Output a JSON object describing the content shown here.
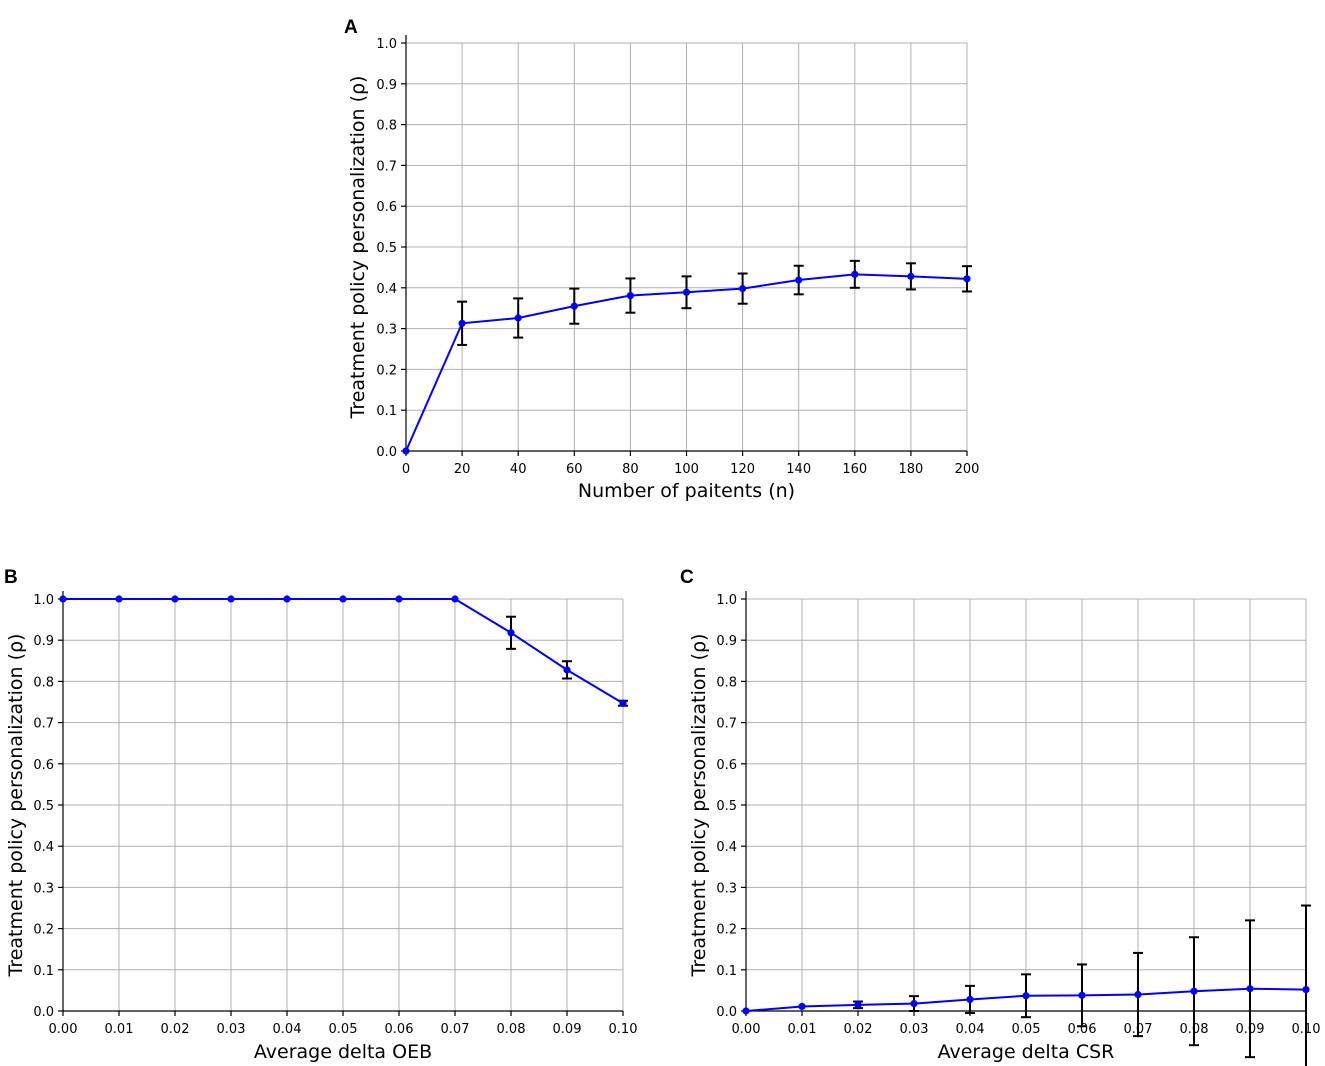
{
  "panels": [
    {
      "letter": "A",
      "xlabel": "Number of paitents (n)",
      "ylabel": "Treatment policy personalization (ρ)",
      "xticks": [
        "0",
        "20",
        "40",
        "60",
        "80",
        "100",
        "120",
        "140",
        "160",
        "180",
        "200"
      ],
      "yticks": [
        "0.0",
        "0.1",
        "0.2",
        "0.3",
        "0.4",
        "0.5",
        "0.6",
        "0.7",
        "0.8",
        "0.9",
        "1.0"
      ]
    },
    {
      "letter": "B",
      "xlabel": "Average delta OEB",
      "ylabel": "Treatment policy personalization (ρ)",
      "xticks": [
        "0.00",
        "0.01",
        "0.02",
        "0.03",
        "0.04",
        "0.05",
        "0.06",
        "0.07",
        "0.08",
        "0.09",
        "0.10"
      ],
      "yticks": [
        "0.0",
        "0.1",
        "0.2",
        "0.3",
        "0.4",
        "0.5",
        "0.6",
        "0.7",
        "0.8",
        "0.9",
        "1.0"
      ]
    },
    {
      "letter": "C",
      "xlabel": "Average delta CSR",
      "ylabel": "Treatment policy personalization (ρ)",
      "xticks": [
        "0.00",
        "0.01",
        "0.02",
        "0.03",
        "0.04",
        "0.05",
        "0.06",
        "0.07",
        "0.08",
        "0.09",
        "0.10"
      ],
      "yticks": [
        "0.0",
        "0.1",
        "0.2",
        "0.3",
        "0.4",
        "0.5",
        "0.6",
        "0.7",
        "0.8",
        "0.9",
        "1.0"
      ]
    }
  ],
  "chart_data": [
    {
      "type": "line",
      "panel": "A",
      "xlabel": "Number of paitents (n)",
      "ylabel": "Treatment policy personalization (ρ)",
      "xlim": [
        0,
        200
      ],
      "ylim": [
        0,
        1.0
      ],
      "grid": true,
      "line_color": "#0000ff",
      "x": [
        0,
        20,
        40,
        60,
        80,
        100,
        120,
        140,
        160,
        180,
        200
      ],
      "y": [
        0.0,
        0.313,
        0.326,
        0.355,
        0.381,
        0.389,
        0.398,
        0.419,
        0.433,
        0.428,
        0.422
      ],
      "yerr": [
        0.0,
        0.053,
        0.048,
        0.043,
        0.042,
        0.039,
        0.037,
        0.035,
        0.033,
        0.032,
        0.031
      ]
    },
    {
      "type": "line",
      "panel": "B",
      "xlabel": "Average delta OEB",
      "ylabel": "Treatment policy personalization (ρ)",
      "xlim": [
        0,
        0.1
      ],
      "ylim": [
        0,
        1.0
      ],
      "grid": true,
      "line_color": "#0000ff",
      "x": [
        0.0,
        0.01,
        0.02,
        0.03,
        0.04,
        0.05,
        0.06,
        0.07,
        0.08,
        0.09,
        0.1
      ],
      "y": [
        1.0,
        1.0,
        1.0,
        1.0,
        1.0,
        1.0,
        1.0,
        1.0,
        0.918,
        0.828,
        0.747
      ],
      "yerr": [
        0.0,
        0.0,
        0.0,
        0.0,
        0.0,
        0.0,
        0.0,
        0.0,
        0.039,
        0.021,
        0.006
      ]
    },
    {
      "type": "line",
      "panel": "C",
      "xlabel": "Average delta CSR",
      "ylabel": "Treatment policy personalization (ρ)",
      "xlim": [
        0,
        0.1
      ],
      "ylim": [
        0,
        1.0
      ],
      "grid": true,
      "line_color": "#0000ff",
      "x": [
        0.0,
        0.01,
        0.02,
        0.03,
        0.04,
        0.05,
        0.06,
        0.07,
        0.08,
        0.09,
        0.1
      ],
      "y": [
        0.0,
        0.011,
        0.015,
        0.018,
        0.028,
        0.037,
        0.038,
        0.04,
        0.048,
        0.054,
        0.052
      ],
      "yerr": [
        0.0,
        0.0,
        0.008,
        0.018,
        0.033,
        0.052,
        0.075,
        0.101,
        0.131,
        0.166,
        0.204
      ]
    }
  ]
}
